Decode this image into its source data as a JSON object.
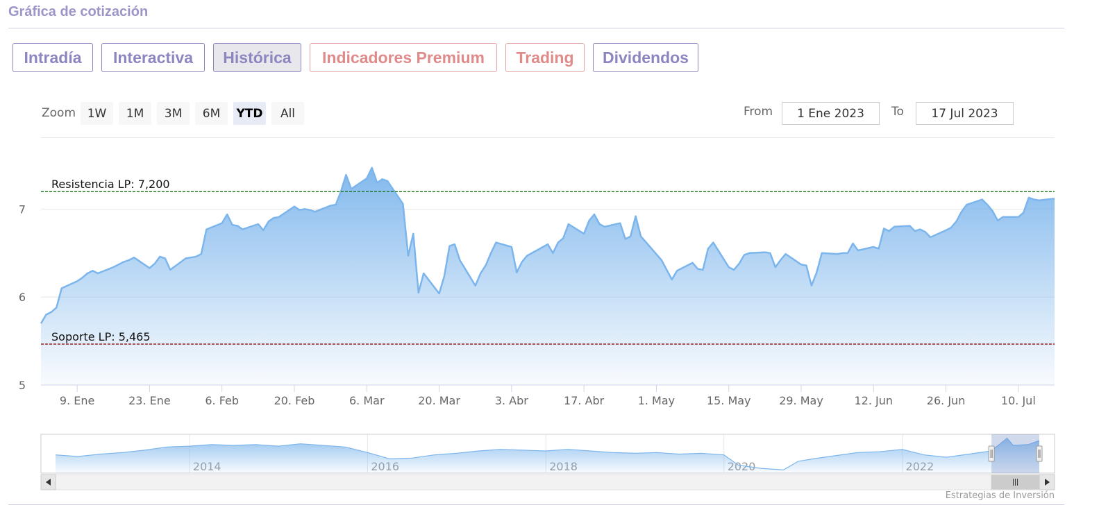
{
  "header": {
    "title": "Gráfica de cotización"
  },
  "tabs": [
    {
      "label": "Intradía",
      "active": false,
      "style": "primary"
    },
    {
      "label": "Interactiva",
      "active": false,
      "style": "primary"
    },
    {
      "label": "Histórica",
      "active": true,
      "style": "primary"
    },
    {
      "label": "Indicadores Premium",
      "active": false,
      "style": "warm"
    },
    {
      "label": "Trading",
      "active": false,
      "style": "warm"
    },
    {
      "label": "Dividendos",
      "active": false,
      "style": "primary"
    }
  ],
  "range_selector": {
    "zoom_label": "Zoom",
    "buttons": [
      "1W",
      "1M",
      "3M",
      "6M",
      "YTD",
      "All"
    ],
    "selected": "YTD",
    "from_label": "From",
    "from_value": "1 Ene 2023",
    "to_label": "To",
    "to_value": "17 Jul 2023"
  },
  "colors": {
    "series": "#7cb5ec",
    "resistance_line": "#1e7b1e",
    "support_line": "#a01d1d",
    "tab_primary": "#8c86c0",
    "tab_warm": "#e08a8a"
  },
  "chart_data": {
    "type": "area",
    "ylim": [
      5,
      7.8
    ],
    "y_ticks": [
      "5",
      "6",
      "7"
    ],
    "x_ticks": [
      "9. Ene",
      "23. Ene",
      "6. Feb",
      "20. Feb",
      "6. Mar",
      "20. Mar",
      "3. Abr",
      "17. Abr",
      "1. May",
      "15. May",
      "29. May",
      "12. Jun",
      "26. Jun",
      "10. Jul"
    ],
    "x_tick_dates": [
      "2023-01-09",
      "2023-01-23",
      "2023-02-06",
      "2023-02-20",
      "2023-03-06",
      "2023-03-20",
      "2023-04-03",
      "2023-04-17",
      "2023-05-01",
      "2023-05-15",
      "2023-05-29",
      "2023-06-12",
      "2023-06-26",
      "2023-07-10"
    ],
    "x_range": [
      "2023-01-02",
      "2023-07-17"
    ],
    "plot_lines": [
      {
        "label": "Resistencia LP: 7,200",
        "value": 7.2,
        "color": "#1e7b1e"
      },
      {
        "label": "Soporte LP: 5,465",
        "value": 5.465,
        "color": "#a01d1d"
      }
    ],
    "points": [
      [
        "2023-01-02",
        5.7
      ],
      [
        "2023-01-03",
        5.8
      ],
      [
        "2023-01-04",
        5.83
      ],
      [
        "2023-01-05",
        5.88
      ],
      [
        "2023-01-06",
        6.1
      ],
      [
        "2023-01-09",
        6.18
      ],
      [
        "2023-01-10",
        6.22
      ],
      [
        "2023-01-11",
        6.27
      ],
      [
        "2023-01-12",
        6.3
      ],
      [
        "2023-01-13",
        6.27
      ],
      [
        "2023-01-16",
        6.34
      ],
      [
        "2023-01-17",
        6.37
      ],
      [
        "2023-01-18",
        6.4
      ],
      [
        "2023-01-19",
        6.42
      ],
      [
        "2023-01-20",
        6.45
      ],
      [
        "2023-01-23",
        6.33
      ],
      [
        "2023-01-24",
        6.38
      ],
      [
        "2023-01-25",
        6.46
      ],
      [
        "2023-01-26",
        6.44
      ],
      [
        "2023-01-27",
        6.31
      ],
      [
        "2023-01-30",
        6.44
      ],
      [
        "2023-01-31",
        6.45
      ],
      [
        "2023-02-01",
        6.46
      ],
      [
        "2023-02-02",
        6.49
      ],
      [
        "2023-02-03",
        6.77
      ],
      [
        "2023-02-06",
        6.84
      ],
      [
        "2023-02-07",
        6.94
      ],
      [
        "2023-02-08",
        6.82
      ],
      [
        "2023-02-09",
        6.81
      ],
      [
        "2023-02-10",
        6.77
      ],
      [
        "2023-02-13",
        6.83
      ],
      [
        "2023-02-14",
        6.76
      ],
      [
        "2023-02-15",
        6.86
      ],
      [
        "2023-02-16",
        6.9
      ],
      [
        "2023-02-17",
        6.91
      ],
      [
        "2023-02-20",
        7.03
      ],
      [
        "2023-02-21",
        6.99
      ],
      [
        "2023-02-22",
        7.0
      ],
      [
        "2023-02-23",
        6.99
      ],
      [
        "2023-02-24",
        6.97
      ],
      [
        "2023-02-27",
        7.04
      ],
      [
        "2023-02-28",
        7.05
      ],
      [
        "2023-03-01",
        7.2
      ],
      [
        "2023-03-02",
        7.39
      ],
      [
        "2023-03-03",
        7.23
      ],
      [
        "2023-03-06",
        7.35
      ],
      [
        "2023-03-07",
        7.47
      ],
      [
        "2023-03-08",
        7.3
      ],
      [
        "2023-03-09",
        7.34
      ],
      [
        "2023-03-10",
        7.32
      ],
      [
        "2023-03-13",
        7.06
      ],
      [
        "2023-03-14",
        6.47
      ],
      [
        "2023-03-15",
        6.72
      ],
      [
        "2023-03-16",
        6.05
      ],
      [
        "2023-03-17",
        6.27
      ],
      [
        "2023-03-20",
        6.04
      ],
      [
        "2023-03-21",
        6.24
      ],
      [
        "2023-03-22",
        6.58
      ],
      [
        "2023-03-23",
        6.6
      ],
      [
        "2023-03-24",
        6.42
      ],
      [
        "2023-03-27",
        6.13
      ],
      [
        "2023-03-28",
        6.27
      ],
      [
        "2023-03-29",
        6.36
      ],
      [
        "2023-03-30",
        6.5
      ],
      [
        "2023-03-31",
        6.62
      ],
      [
        "2023-04-03",
        6.57
      ],
      [
        "2023-04-04",
        6.28
      ],
      [
        "2023-04-05",
        6.4
      ],
      [
        "2023-04-06",
        6.47
      ],
      [
        "2023-04-10",
        6.6
      ],
      [
        "2023-04-11",
        6.5
      ],
      [
        "2023-04-12",
        6.62
      ],
      [
        "2023-04-13",
        6.67
      ],
      [
        "2023-04-14",
        6.83
      ],
      [
        "2023-04-17",
        6.72
      ],
      [
        "2023-04-18",
        6.87
      ],
      [
        "2023-04-19",
        6.94
      ],
      [
        "2023-04-20",
        6.83
      ],
      [
        "2023-04-21",
        6.8
      ],
      [
        "2023-04-24",
        6.84
      ],
      [
        "2023-04-25",
        6.66
      ],
      [
        "2023-04-26",
        6.69
      ],
      [
        "2023-04-27",
        6.92
      ],
      [
        "2023-04-28",
        6.69
      ],
      [
        "2023-05-02",
        6.42
      ],
      [
        "2023-05-03",
        6.31
      ],
      [
        "2023-05-04",
        6.2
      ],
      [
        "2023-05-05",
        6.3
      ],
      [
        "2023-05-08",
        6.39
      ],
      [
        "2023-05-09",
        6.32
      ],
      [
        "2023-05-10",
        6.31
      ],
      [
        "2023-05-11",
        6.55
      ],
      [
        "2023-05-12",
        6.62
      ],
      [
        "2023-05-15",
        6.34
      ],
      [
        "2023-05-16",
        6.31
      ],
      [
        "2023-05-17",
        6.38
      ],
      [
        "2023-05-18",
        6.48
      ],
      [
        "2023-05-19",
        6.5
      ],
      [
        "2023-05-22",
        6.51
      ],
      [
        "2023-05-23",
        6.5
      ],
      [
        "2023-05-24",
        6.34
      ],
      [
        "2023-05-25",
        6.42
      ],
      [
        "2023-05-26",
        6.49
      ],
      [
        "2023-05-29",
        6.37
      ],
      [
        "2023-05-30",
        6.36
      ],
      [
        "2023-05-31",
        6.13
      ],
      [
        "2023-06-01",
        6.28
      ],
      [
        "2023-06-02",
        6.5
      ],
      [
        "2023-06-05",
        6.49
      ],
      [
        "2023-06-06",
        6.5
      ],
      [
        "2023-06-07",
        6.5
      ],
      [
        "2023-06-08",
        6.61
      ],
      [
        "2023-06-09",
        6.53
      ],
      [
        "2023-06-12",
        6.57
      ],
      [
        "2023-06-13",
        6.55
      ],
      [
        "2023-06-14",
        6.78
      ],
      [
        "2023-06-15",
        6.75
      ],
      [
        "2023-06-16",
        6.8
      ],
      [
        "2023-06-19",
        6.81
      ],
      [
        "2023-06-20",
        6.75
      ],
      [
        "2023-06-21",
        6.77
      ],
      [
        "2023-06-22",
        6.74
      ],
      [
        "2023-06-23",
        6.68
      ],
      [
        "2023-06-26",
        6.76
      ],
      [
        "2023-06-27",
        6.79
      ],
      [
        "2023-06-28",
        6.86
      ],
      [
        "2023-06-29",
        6.97
      ],
      [
        "2023-06-30",
        7.05
      ],
      [
        "2023-07-03",
        7.11
      ],
      [
        "2023-07-04",
        7.05
      ],
      [
        "2023-07-05",
        6.98
      ],
      [
        "2023-07-06",
        6.87
      ],
      [
        "2023-07-07",
        6.91
      ],
      [
        "2023-07-10",
        6.91
      ],
      [
        "2023-07-11",
        6.96
      ],
      [
        "2023-07-12",
        7.13
      ],
      [
        "2023-07-13",
        7.11
      ],
      [
        "2023-07-14",
        7.1
      ],
      [
        "2023-07-17",
        7.12
      ]
    ],
    "navigator": {
      "x_ticks": [
        "2014",
        "2016",
        "2018",
        "2020",
        "2022"
      ],
      "x_tick_dates": [
        "2014-01-01",
        "2016-01-01",
        "2018-01-01",
        "2020-01-01",
        "2022-01-01"
      ],
      "x_range": [
        "2012-07-01",
        "2023-07-17"
      ],
      "selection": [
        "2023-01-02",
        "2023-07-17"
      ],
      "points": [
        [
          "2012-07-01",
          5.3
        ],
        [
          "2012-10-01",
          5.1
        ],
        [
          "2013-01-01",
          5.4
        ],
        [
          "2013-04-01",
          5.6
        ],
        [
          "2013-07-01",
          5.9
        ],
        [
          "2013-10-01",
          6.3
        ],
        [
          "2014-01-01",
          6.4
        ],
        [
          "2014-04-01",
          6.6
        ],
        [
          "2014-07-01",
          6.5
        ],
        [
          "2014-10-01",
          6.6
        ],
        [
          "2015-01-01",
          6.4
        ],
        [
          "2015-04-01",
          6.7
        ],
        [
          "2015-07-01",
          6.5
        ],
        [
          "2015-10-01",
          6.3
        ],
        [
          "2016-01-01",
          5.6
        ],
        [
          "2016-04-01",
          4.8
        ],
        [
          "2016-07-01",
          4.9
        ],
        [
          "2016-10-01",
          5.3
        ],
        [
          "2017-01-01",
          5.5
        ],
        [
          "2017-04-01",
          5.8
        ],
        [
          "2017-07-01",
          6.0
        ],
        [
          "2017-10-01",
          5.9
        ],
        [
          "2018-01-01",
          5.8
        ],
        [
          "2018-04-01",
          6.0
        ],
        [
          "2018-07-01",
          5.8
        ],
        [
          "2018-10-01",
          5.6
        ],
        [
          "2019-01-01",
          5.5
        ],
        [
          "2019-04-01",
          5.6
        ],
        [
          "2019-07-01",
          5.4
        ],
        [
          "2019-10-01",
          5.5
        ],
        [
          "2020-01-01",
          5.3
        ],
        [
          "2020-03-01",
          4.0
        ],
        [
          "2020-06-01",
          3.6
        ],
        [
          "2020-09-01",
          3.4
        ],
        [
          "2020-11-01",
          4.5
        ],
        [
          "2021-01-01",
          4.8
        ],
        [
          "2021-04-01",
          5.2
        ],
        [
          "2021-07-01",
          5.6
        ],
        [
          "2021-10-01",
          5.7
        ],
        [
          "2022-01-01",
          6.0
        ],
        [
          "2022-04-01",
          5.3
        ],
        [
          "2022-07-01",
          5.0
        ],
        [
          "2022-10-01",
          5.4
        ],
        [
          "2023-01-01",
          5.8
        ],
        [
          "2023-03-07",
          7.4
        ],
        [
          "2023-04-01",
          6.5
        ],
        [
          "2023-06-01",
          6.6
        ],
        [
          "2023-07-17",
          7.1
        ]
      ]
    }
  },
  "credit": "Estrategias de Inversión"
}
